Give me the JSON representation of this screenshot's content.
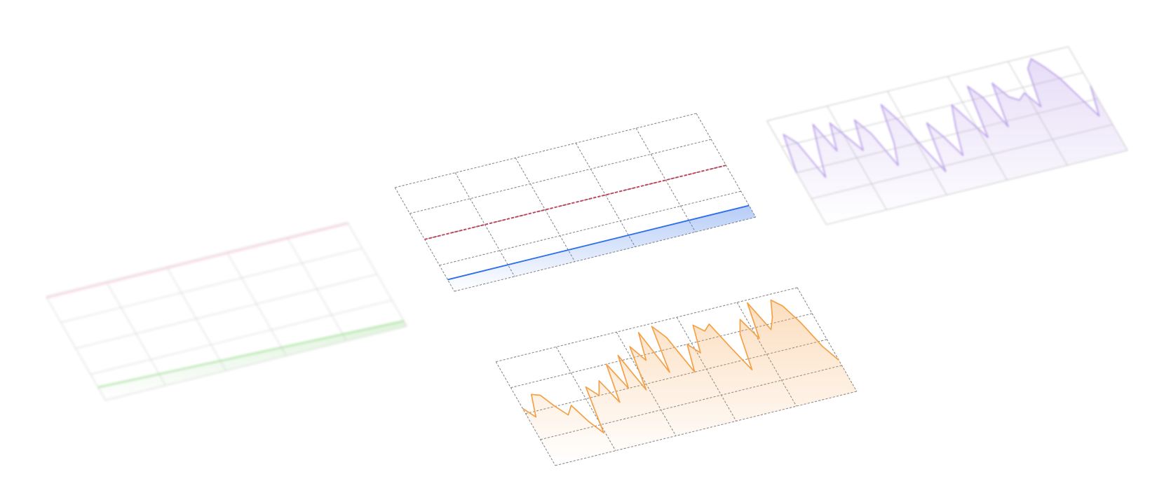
{
  "chart_data": [
    {
      "type": "line",
      "ylim": [
        0,
        4
      ],
      "yticks": [
        0,
        1,
        2,
        3,
        4
      ],
      "grid": "solid",
      "series": [
        {
          "color": "#f4a6b8",
          "values": [
            3.95,
            3.95
          ]
        },
        {
          "color": "#5cc44a",
          "values": [
            0.5,
            0.2
          ],
          "fill": true
        }
      ]
    },
    {
      "type": "line",
      "ylim": [
        0,
        4
      ],
      "yticks": [
        0,
        1,
        2,
        3,
        4
      ],
      "grid": "dashed",
      "series": [
        {
          "color": "#c0405a",
          "values": [
            2,
            2
          ],
          "dashed": true
        },
        {
          "color": "#2f6fe8",
          "values": [
            0.45,
            0.45
          ],
          "fill": true
        }
      ]
    },
    {
      "type": "area",
      "ylim": [
        0,
        4
      ],
      "yticks": [
        0,
        1,
        2,
        3,
        4
      ],
      "grid": "solid",
      "series": [
        {
          "color": "#a27ee0",
          "values": [
            2.0,
            3.4,
            3.0,
            1.6,
            2.6,
            3.5,
            2.4,
            3.4,
            2.8,
            2.2,
            3.3,
            2.7,
            1.4,
            2.2,
            3.6,
            2.9,
            1.8,
            0.8,
            2.6,
            2.0,
            1.2,
            2.2,
            3.0,
            2.3,
            1.6,
            3.5,
            3.0,
            1.8,
            3.4,
            2.8,
            2.6,
            2.8,
            2.2,
            3.6,
            3.9,
            3.5,
            3.0,
            2.2,
            1.4,
            2.5
          ],
          "fill": true
        }
      ]
    },
    {
      "type": "area",
      "ylim": [
        0,
        4
      ],
      "yticks": [
        0,
        1,
        2,
        3,
        4
      ],
      "grid": "dashed",
      "series": [
        {
          "color": "#f5a046",
          "values": [
            2.2,
            1.8,
            2.6,
            2.5,
            2.0,
            1.6,
            1.9,
            1.2,
            0.7,
            2.4,
            2.0,
            2.5,
            1.6,
            3.0,
            2.0,
            3.2,
            1.8,
            3.4,
            2.8,
            3.8,
            2.2,
            3.9,
            3.4,
            2.0,
            3.0,
            2.6,
            3.6,
            3.3,
            3.5,
            2.5,
            1.6,
            2.9,
            3.4,
            2.6,
            3.9,
            2.8,
            3.2,
            3.8,
            3.5,
            2.8,
            1.8,
            1.2
          ],
          "fill": true
        }
      ]
    }
  ]
}
